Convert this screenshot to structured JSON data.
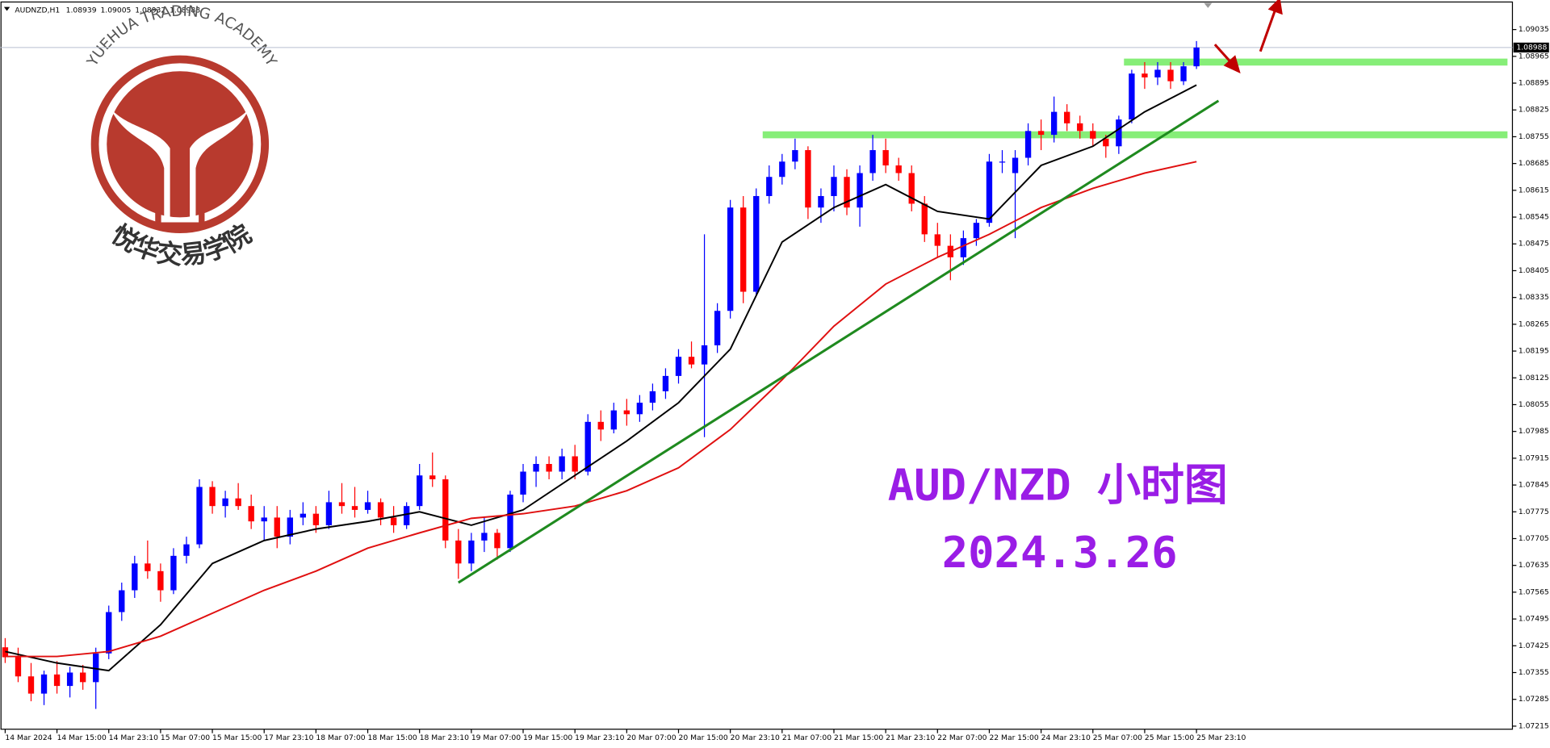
{
  "chart_data": {
    "type": "candlestick",
    "symbol": "AUDNZD,H1",
    "title": "AUD/NZD 小时图",
    "subtitle": "2024.3.26",
    "logo": {
      "arc_text": "YUEHUA TRADING ACADEMY",
      "name": "悦华交易学院"
    },
    "up_color": "#0000ff",
    "down_color": "#ff0000",
    "open": [
      1.07421,
      1.07395,
      1.07345,
      1.073,
      1.0735,
      1.0732,
      1.07355,
      1.0733,
      1.07405,
      1.07513,
      1.0757,
      1.0764,
      1.0762,
      1.0757,
      1.0766,
      1.0769,
      1.0784,
      1.0779,
      1.0781,
      1.0779,
      1.0775,
      1.0776,
      1.0771,
      1.0776,
      1.0777,
      1.0774,
      1.078,
      1.0779,
      1.0778,
      1.078,
      1.0776,
      1.0774,
      1.0779,
      1.0787,
      1.0786,
      1.077,
      1.0764,
      1.077,
      1.0772,
      1.0768,
      1.0782,
      1.0788,
      1.079,
      1.0788,
      1.0792,
      1.0788,
      1.0801,
      1.0799,
      1.0804,
      1.0803,
      1.0806,
      1.0809,
      1.0813,
      1.0818,
      1.0816,
      1.0821,
      1.083,
      1.0857,
      1.0835,
      1.086,
      1.0865,
      1.0869,
      1.0872,
      1.0857,
      1.086,
      1.0865,
      1.0857,
      1.0866,
      1.0872,
      1.0868,
      1.0866,
      1.0858,
      1.085,
      1.0847,
      1.0844,
      1.0849,
      1.0853,
      1.0869,
      1.0866,
      1.087,
      1.0877,
      1.0876,
      1.0882,
      1.0879,
      1.0877,
      1.0875,
      1.0873,
      1.088,
      1.0892,
      1.0891,
      1.0893,
      1.089,
      1.08939
    ],
    "high": [
      1.07445,
      1.0742,
      1.0738,
      1.0736,
      1.07385,
      1.0737,
      1.07375,
      1.0742,
      1.0753,
      1.0759,
      1.0766,
      1.077,
      1.0764,
      1.0768,
      1.0771,
      1.0786,
      1.07855,
      1.0783,
      1.0785,
      1.0782,
      1.0779,
      1.0779,
      1.0778,
      1.078,
      1.0779,
      1.0783,
      1.0785,
      1.0784,
      1.0783,
      1.0781,
      1.0779,
      1.078,
      1.079,
      1.0793,
      1.0787,
      1.0773,
      1.0772,
      1.0776,
      1.0773,
      1.0783,
      1.079,
      1.0792,
      1.0792,
      1.0794,
      1.0795,
      1.0803,
      1.0804,
      1.0806,
      1.0807,
      1.0808,
      1.0811,
      1.0815,
      1.082,
      1.0822,
      1.085,
      1.0832,
      1.0859,
      1.086,
      1.0862,
      1.0868,
      1.0871,
      1.0875,
      1.0873,
      1.0862,
      1.0868,
      1.0867,
      1.0868,
      1.0876,
      1.0875,
      1.087,
      1.0868,
      1.086,
      1.0853,
      1.085,
      1.0851,
      1.0854,
      1.0871,
      1.0872,
      1.0872,
      1.0879,
      1.088,
      1.0886,
      1.0884,
      1.0881,
      1.0879,
      1.0876,
      1.0881,
      1.0893,
      1.0895,
      1.0895,
      1.0895,
      1.0895,
      1.09005
    ],
    "low": [
      1.0738,
      1.0733,
      1.0728,
      1.0727,
      1.073,
      1.0729,
      1.0731,
      1.0726,
      1.0739,
      1.0749,
      1.0755,
      1.076,
      1.0754,
      1.0756,
      1.0764,
      1.0768,
      1.0777,
      1.0776,
      1.0778,
      1.0773,
      1.077,
      1.0768,
      1.0769,
      1.0774,
      1.0772,
      1.0773,
      1.0777,
      1.0776,
      1.0777,
      1.0774,
      1.0772,
      1.0773,
      1.0778,
      1.0784,
      1.0768,
      1.076,
      1.0762,
      1.0767,
      1.0765,
      1.0767,
      1.078,
      1.0784,
      1.0786,
      1.0786,
      1.0786,
      1.0787,
      1.0796,
      1.0798,
      1.08,
      1.0801,
      1.0804,
      1.0807,
      1.0811,
      1.0815,
      1.0797,
      1.0819,
      1.0828,
      1.0832,
      1.0834,
      1.0858,
      1.0863,
      1.0867,
      1.0854,
      1.0853,
      1.0856,
      1.0855,
      1.0852,
      1.0864,
      1.0866,
      1.0864,
      1.0856,
      1.0848,
      1.0844,
      1.0838,
      1.0842,
      1.0847,
      1.0852,
      1.0866,
      1.0849,
      1.0868,
      1.0872,
      1.0874,
      1.0877,
      1.0875,
      1.0873,
      1.087,
      1.0871,
      1.0879,
      1.0888,
      1.0889,
      1.0888,
      1.0889,
      1.08932
    ],
    "close": [
      1.07395,
      1.07345,
      1.073,
      1.0735,
      1.0732,
      1.07355,
      1.0733,
      1.07405,
      1.07513,
      1.0757,
      1.0764,
      1.0762,
      1.0757,
      1.0766,
      1.0769,
      1.0784,
      1.0779,
      1.0781,
      1.0779,
      1.0775,
      1.0776,
      1.0771,
      1.0776,
      1.0777,
      1.0774,
      1.078,
      1.0779,
      1.0778,
      1.078,
      1.0776,
      1.0774,
      1.0779,
      1.0787,
      1.0786,
      1.077,
      1.0764,
      1.077,
      1.0772,
      1.0768,
      1.0782,
      1.0788,
      1.079,
      1.0788,
      1.0792,
      1.0788,
      1.0801,
      1.0799,
      1.0804,
      1.0803,
      1.0806,
      1.0809,
      1.0813,
      1.0818,
      1.0816,
      1.0821,
      1.083,
      1.0857,
      1.0835,
      1.086,
      1.0865,
      1.0869,
      1.0872,
      1.0857,
      1.086,
      1.0865,
      1.0857,
      1.0866,
      1.0872,
      1.0868,
      1.0866,
      1.0858,
      1.085,
      1.0847,
      1.0844,
      1.0849,
      1.0853,
      1.0869,
      1.0869,
      1.087,
      1.0877,
      1.0876,
      1.0882,
      1.0879,
      1.0877,
      1.0875,
      1.0873,
      1.088,
      1.0892,
      1.0891,
      1.0893,
      1.089,
      1.08939,
      1.08988
    ],
    "moving_averages": [
      {
        "color": "#000000",
        "x": [
          0,
          4,
          8,
          12,
          16,
          20,
          24,
          28,
          32,
          36,
          40,
          44,
          48,
          52,
          56,
          60,
          64,
          68,
          72,
          76,
          80,
          84,
          88,
          92
        ],
        "values": [
          1.0741,
          1.0738,
          1.0736,
          1.0748,
          1.0764,
          1.077,
          1.0773,
          1.0775,
          1.07775,
          1.0774,
          1.0778,
          1.0787,
          1.0796,
          1.0806,
          1.082,
          1.0848,
          1.0857,
          1.0863,
          1.0856,
          1.0854,
          1.0868,
          1.0873,
          1.0882,
          1.0889
        ]
      },
      {
        "color": "#e01010",
        "x": [
          0,
          4,
          8,
          12,
          16,
          20,
          24,
          28,
          32,
          36,
          40,
          44,
          48,
          52,
          56,
          60,
          64,
          68,
          72,
          76,
          80,
          84,
          88,
          92
        ],
        "values": [
          1.07397,
          1.07397,
          1.0741,
          1.0745,
          1.0751,
          1.0757,
          1.0762,
          1.0768,
          1.0772,
          1.07758,
          1.0777,
          1.0779,
          1.0783,
          1.0789,
          1.0799,
          1.0812,
          1.0826,
          1.0837,
          1.0844,
          1.085,
          1.0857,
          1.0862,
          1.0866,
          1.0869
        ]
      }
    ],
    "trendline": {
      "color": "#1f8a1f",
      "x": [
        35,
        93.7
      ],
      "values": [
        1.0759,
        1.08849
      ]
    },
    "levels": [
      {
        "color": "#86ee78",
        "x": 58.5,
        "value": 1.0876
      },
      {
        "color": "#86ee78",
        "x": 86.4,
        "value": 1.0895
      }
    ],
    "xlim": [
      -0.4,
      116.4
    ],
    "ylim": [
      1.07207,
      1.09107
    ],
    "yticks": [
      1.07215,
      1.07285,
      1.07355,
      1.07425,
      1.07495,
      1.07565,
      1.07635,
      1.07705,
      1.07775,
      1.07845,
      1.07915,
      1.07985,
      1.08055,
      1.08125,
      1.08195,
      1.08265,
      1.08335,
      1.08405,
      1.08475,
      1.08545,
      1.08615,
      1.08685,
      1.08755,
      1.08825,
      1.08895,
      1.08965,
      1.09035
    ],
    "xticks": [
      {
        "value": 0,
        "label": "14 Mar 2024"
      },
      {
        "value": 4,
        "label": "14 Mar 15:00"
      },
      {
        "value": 8,
        "label": "14 Mar 23:10"
      },
      {
        "value": 12,
        "label": "15 Mar 07:00"
      },
      {
        "value": 16,
        "label": "15 Mar 15:00"
      },
      {
        "value": 20,
        "label": "17 Mar 23:10"
      },
      {
        "value": 24,
        "label": "18 Mar 07:00"
      },
      {
        "value": 28,
        "label": "18 Mar 15:00"
      },
      {
        "value": 32,
        "label": "18 Mar 23:10"
      },
      {
        "value": 36,
        "label": "19 Mar 07:00"
      },
      {
        "value": 40,
        "label": "19 Mar 15:00"
      },
      {
        "value": 44,
        "label": "19 Mar 23:10"
      },
      {
        "value": 48,
        "label": "20 Mar 07:00"
      },
      {
        "value": 52,
        "label": "20 Mar 15:00"
      },
      {
        "value": 56,
        "label": "20 Mar 23:10"
      },
      {
        "value": 60,
        "label": "21 Mar 07:00"
      },
      {
        "value": 64,
        "label": "21 Mar 15:00"
      },
      {
        "value": 68,
        "label": "21 Mar 23:10"
      },
      {
        "value": 72,
        "label": "22 Mar 07:00"
      },
      {
        "value": 76,
        "label": "22 Mar 15:00"
      },
      {
        "value": 80,
        "label": "24 Mar 23:10"
      },
      {
        "value": 84,
        "label": "25 Mar 07:00"
      },
      {
        "value": 88,
        "label": "25 Mar 15:00"
      },
      {
        "value": 92,
        "label": "25 Mar 23:10"
      }
    ]
  }
}
